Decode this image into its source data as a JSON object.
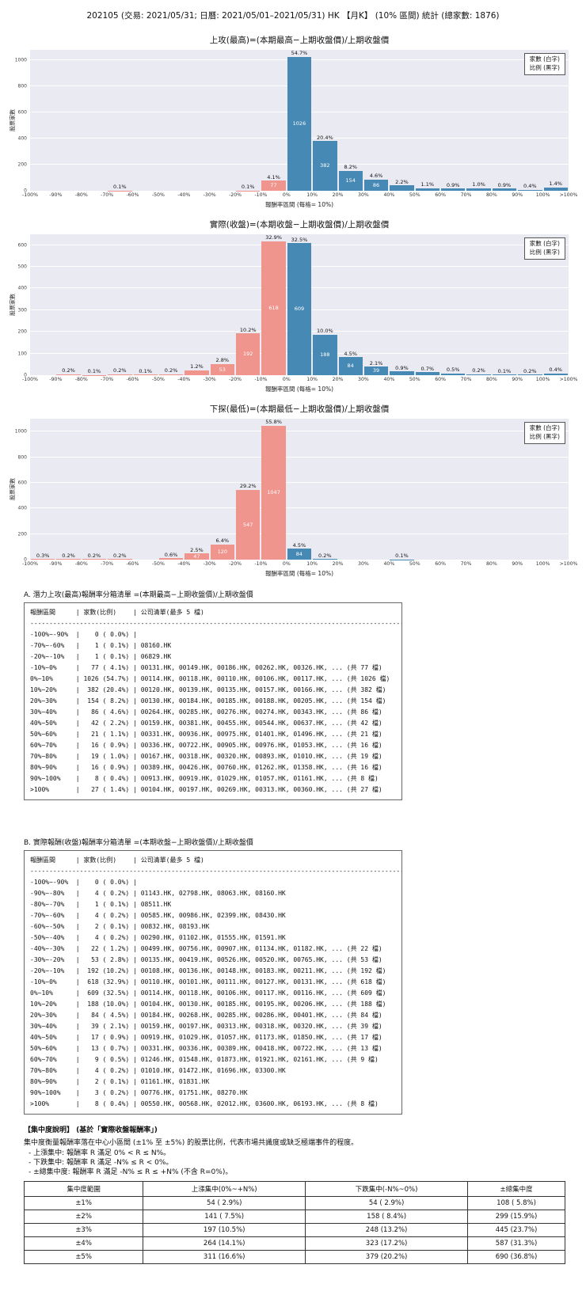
{
  "page_title": "202105 (交易: 2021/05/31; 日曆: 2021/05/01–2021/05/31) HK 【月K】 (10% 區間) 統計 (總家數: 1876)",
  "colors": {
    "negative": "#f0948e",
    "positive": "#4589b4",
    "plot_bg": "#eaeaf2"
  },
  "legend": {
    "line1": "家數 (白字)",
    "line2": "比例 (黑字)"
  },
  "chart_data": [
    {
      "type": "bar",
      "title": "上攻(最高)=(本期最高−上期收盤價)/上期收盤價",
      "ylabel": "股票家數",
      "xlabel": "報酬率區間 (每格= 10%)",
      "tick_labels": [
        "-100%",
        "-90%",
        "-80%",
        "-70%",
        "-60%",
        "-50%",
        "-40%",
        "-30%",
        "-20%",
        "-10%",
        "0%",
        "10%",
        "20%",
        "30%",
        "40%",
        "50%",
        "60%",
        "70%",
        "80%",
        "90%",
        "100%",
        ">100%"
      ],
      "counts": [
        0,
        0,
        0,
        1,
        0,
        0,
        0,
        0,
        1,
        77,
        1026,
        382,
        154,
        86,
        42,
        21,
        16,
        19,
        16,
        8,
        27
      ],
      "pct_labels": [
        "",
        "",
        "",
        "0.1%",
        "",
        "",
        "",
        "",
        "0.1%",
        "4.1%",
        "54.7%",
        "20.4%",
        "8.2%",
        "4.6%",
        "2.2%",
        "1.1%",
        "0.9%",
        "1.0%",
        "0.9%",
        "0.4%",
        "1.4%"
      ],
      "negative_bins": 10,
      "ylim": [
        0,
        1080
      ],
      "yticks": [
        0,
        200,
        400,
        600,
        800,
        1000
      ]
    },
    {
      "type": "bar",
      "title": "實際(收盤)=(本期收盤−上期收盤價)/上期收盤價",
      "ylabel": "股票家數",
      "xlabel": "報酬率區間 (每格= 10%)",
      "tick_labels": [
        "-100%",
        "-90%",
        "-80%",
        "-70%",
        "-60%",
        "-50%",
        "-40%",
        "-30%",
        "-20%",
        "-10%",
        "0%",
        "10%",
        "20%",
        "30%",
        "40%",
        "50%",
        "60%",
        "70%",
        "80%",
        "90%",
        "100%",
        ">100%"
      ],
      "counts": [
        0,
        4,
        1,
        4,
        2,
        4,
        22,
        53,
        192,
        618,
        609,
        188,
        84,
        39,
        17,
        13,
        9,
        4,
        2,
        3,
        8
      ],
      "pct_labels": [
        "",
        "0.2%",
        "0.1%",
        "0.2%",
        "0.1%",
        "0.2%",
        "1.2%",
        "2.8%",
        "10.2%",
        "32.9%",
        "32.5%",
        "10.0%",
        "4.5%",
        "2.1%",
        "0.9%",
        "0.7%",
        "0.5%",
        "0.2%",
        "0.1%",
        "0.2%",
        "0.4%"
      ],
      "negative_bins": 10,
      "ylim": [
        0,
        650
      ],
      "yticks": [
        0,
        100,
        200,
        300,
        400,
        500,
        600
      ]
    },
    {
      "type": "bar",
      "title": "下探(最低)=(本期最低−上期收盤價)/上期收盤價",
      "ylabel": "股票家數",
      "xlabel": "報酬率區間 (每格= 10%)",
      "tick_labels": [
        "-100%",
        "-90%",
        "-80%",
        "-70%",
        "-60%",
        "-50%",
        "-40%",
        "-30%",
        "-20%",
        "-10%",
        "0%",
        "10%",
        "20%",
        "30%",
        "40%",
        "50%",
        "60%",
        "70%",
        "80%",
        "90%",
        "100%",
        ">100%"
      ],
      "counts": [
        6,
        4,
        4,
        4,
        0,
        11,
        47,
        120,
        547,
        1047,
        84,
        4,
        0,
        0,
        2,
        0,
        0,
        0,
        0,
        0,
        0
      ],
      "pct_labels": [
        "0.3%",
        "0.2%",
        "0.2%",
        "0.2%",
        "",
        "0.6%",
        "2.5%",
        "6.4%",
        "29.2%",
        "55.8%",
        "4.5%",
        "0.2%",
        "",
        "",
        "0.1%",
        "",
        "",
        "",
        "",
        "",
        ""
      ],
      "negative_bins": 10,
      "ylim": [
        0,
        1100
      ],
      "yticks": [
        0,
        200,
        400,
        600,
        800,
        1000
      ]
    }
  ],
  "list_a": {
    "heading": "A. 潛力上攻(最高)報酬率分箱清單 =(本期最高−上期收盤價)/上期收盤價",
    "headers": [
      "報酬區間",
      "家數(比例)",
      "公司清單(最多 5 檔)"
    ],
    "divider": "----------------------------------------------------------------------------------------------------",
    "rows": [
      [
        "-100%~-90%",
        "0 ( 0.0%)",
        ""
      ],
      [
        "-70%~-60%",
        "1 ( 0.1%)",
        "08160.HK"
      ],
      [
        "-20%~-10%",
        "1 ( 0.1%)",
        "06829.HK"
      ],
      [
        "-10%~0%",
        "77 ( 4.1%)",
        "00131.HK, 00149.HK, 00186.HK, 00262.HK, 00326.HK, ... (共 77 檔)"
      ],
      [
        "0%~10%",
        "1026 (54.7%)",
        "00114.HK, 00118.HK, 00110.HK, 00106.HK, 00117.HK, ... (共 1026 檔)"
      ],
      [
        "10%~20%",
        "382 (20.4%)",
        "00120.HK, 00139.HK, 00135.HK, 00157.HK, 00166.HK, ... (共 382 檔)"
      ],
      [
        "20%~30%",
        "154 ( 8.2%)",
        "00130.HK, 00184.HK, 00185.HK, 00188.HK, 00205.HK, ... (共 154 檔)"
      ],
      [
        "30%~40%",
        "86 ( 4.6%)",
        "00264.HK, 00285.HK, 00276.HK, 00274.HK, 00343.HK, ... (共 86 檔)"
      ],
      [
        "40%~50%",
        "42 ( 2.2%)",
        "00159.HK, 00381.HK, 00455.HK, 00544.HK, 00637.HK, ... (共 42 檔)"
      ],
      [
        "50%~60%",
        "21 ( 1.1%)",
        "00331.HK, 00936.HK, 00975.HK, 01401.HK, 01496.HK, ... (共 21 檔)"
      ],
      [
        "60%~70%",
        "16 ( 0.9%)",
        "00336.HK, 00722.HK, 00905.HK, 00976.HK, 01053.HK, ... (共 16 檔)"
      ],
      [
        "70%~80%",
        "19 ( 1.0%)",
        "00167.HK, 00318.HK, 00320.HK, 00893.HK, 01010.HK, ... (共 19 檔)"
      ],
      [
        "80%~90%",
        "16 ( 0.9%)",
        "00389.HK, 00426.HK, 00760.HK, 01262.HK, 01358.HK, ... (共 16 檔)"
      ],
      [
        "90%~100%",
        "8 ( 0.4%)",
        "00913.HK, 00919.HK, 01029.HK, 01057.HK, 01161.HK, ... (共 8 檔)"
      ],
      [
        ">100%",
        "27 ( 1.4%)",
        "00104.HK, 00197.HK, 00269.HK, 00313.HK, 00360.HK, ... (共 27 檔)"
      ]
    ]
  },
  "list_b": {
    "heading": "B. 實際報酬(收盤)報酬率分箱清單 =(本期收盤−上期收盤價)/上期收盤價",
    "headers": [
      "報酬區間",
      "家數(比例)",
      "公司清單(最多 5 檔)"
    ],
    "divider": "----------------------------------------------------------------------------------------------------",
    "rows": [
      [
        "-100%~-90%",
        "0 ( 0.0%)",
        ""
      ],
      [
        "-90%~-80%",
        "4 ( 0.2%)",
        "01143.HK, 02798.HK, 08063.HK, 08160.HK"
      ],
      [
        "-80%~-70%",
        "1 ( 0.1%)",
        "08511.HK"
      ],
      [
        "-70%~-60%",
        "4 ( 0.2%)",
        "00585.HK, 00986.HK, 02399.HK, 08430.HK"
      ],
      [
        "-60%~-50%",
        "2 ( 0.1%)",
        "00832.HK, 08193.HK"
      ],
      [
        "-50%~-40%",
        "4 ( 0.2%)",
        "00290.HK, 01102.HK, 01555.HK, 01591.HK"
      ],
      [
        "-40%~-30%",
        "22 ( 1.2%)",
        "00499.HK, 00756.HK, 00907.HK, 01134.HK, 01182.HK, ... (共 22 檔)"
      ],
      [
        "-30%~-20%",
        "53 ( 2.8%)",
        "00135.HK, 00419.HK, 00526.HK, 00520.HK, 00765.HK, ... (共 53 檔)"
      ],
      [
        "-20%~-10%",
        "192 (10.2%)",
        "00108.HK, 00136.HK, 00148.HK, 00183.HK, 00211.HK, ... (共 192 檔)"
      ],
      [
        "-10%~0%",
        "618 (32.9%)",
        "00110.HK, 00101.HK, 00111.HK, 00127.HK, 00131.HK, ... (共 618 檔)"
      ],
      [
        "0%~10%",
        "609 (32.5%)",
        "00114.HK, 00118.HK, 00106.HK, 00117.HK, 00116.HK, ... (共 609 檔)"
      ],
      [
        "10%~20%",
        "188 (10.0%)",
        "00104.HK, 00130.HK, 00185.HK, 00195.HK, 00206.HK, ... (共 188 檔)"
      ],
      [
        "20%~30%",
        "84 ( 4.5%)",
        "00184.HK, 00268.HK, 00285.HK, 00286.HK, 00401.HK, ... (共 84 檔)"
      ],
      [
        "30%~40%",
        "39 ( 2.1%)",
        "00159.HK, 00197.HK, 00313.HK, 00318.HK, 00320.HK, ... (共 39 檔)"
      ],
      [
        "40%~50%",
        "17 ( 0.9%)",
        "00919.HK, 01029.HK, 01057.HK, 01173.HK, 01850.HK, ... (共 17 檔)"
      ],
      [
        "50%~60%",
        "13 ( 0.7%)",
        "00331.HK, 00336.HK, 00389.HK, 00418.HK, 00722.HK, ... (共 13 檔)"
      ],
      [
        "60%~70%",
        "9 ( 0.5%)",
        "01246.HK, 01548.HK, 01873.HK, 01921.HK, 02161.HK, ... (共 9 檔)"
      ],
      [
        "70%~80%",
        "4 ( 0.2%)",
        "01010.HK, 01472.HK, 01696.HK, 03300.HK"
      ],
      [
        "80%~90%",
        "2 ( 0.1%)",
        "01161.HK, 01831.HK"
      ],
      [
        "90%~100%",
        "3 ( 0.2%)",
        "00776.HK, 01751.HK, 08270.HK"
      ],
      [
        ">100%",
        "8 ( 0.4%)",
        "00550.HK, 00568.HK, 02012.HK, 03600.HK, 06193.HK, ... (共 8 檔)"
      ]
    ]
  },
  "concentration": {
    "heading": "【集中度說明】 (基於「實際收盤報酬率」)",
    "desc": "集中度衡量報酬率落在中心小區間 (±1% 至 ±5%) 的股票比例，代表市場共識度或缺乏極端事件的程度。",
    "bullets": [
      "- 上漲集中: 報酬率 R 滿足 0% < R ≤ N%。",
      "- 下跌集中: 報酬率 R 滿足 -N% ≤ R < 0%。",
      "- ±總集中度: 報酬率 R 滿足 -N% ≤ R ≤ +N% (不含 R=0%)。"
    ],
    "table": {
      "headers": [
        "集中度範圍",
        "上漲集中(0%~+N%)",
        "下跌集中(-N%~0%)",
        "±總集中度"
      ],
      "rows": [
        [
          "±1%",
          "54 ( 2.9%)",
          "54 ( 2.9%)",
          "108 ( 5.8%)"
        ],
        [
          "±2%",
          "141 ( 7.5%)",
          "158 ( 8.4%)",
          "299 (15.9%)"
        ],
        [
          "±3%",
          "197 (10.5%)",
          "248 (13.2%)",
          "445 (23.7%)"
        ],
        [
          "±4%",
          "264 (14.1%)",
          "323 (17.2%)",
          "587 (31.3%)"
        ],
        [
          "±5%",
          "311 (16.6%)",
          "379 (20.2%)",
          "690 (36.8%)"
        ]
      ]
    }
  }
}
